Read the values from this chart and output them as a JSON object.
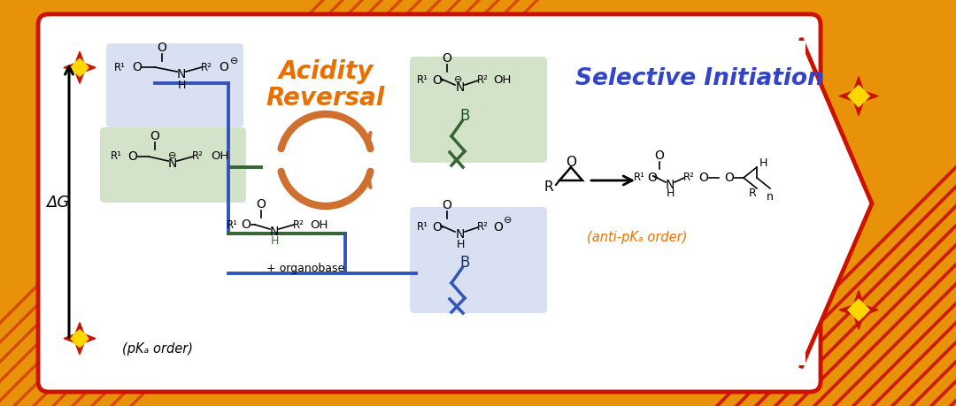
{
  "bg_color": "#E8920A",
  "panel_facecolor": "#FFFFFF",
  "border_color": "#CC1100",
  "title_acidity_color": "#E87000",
  "title_selective_color": "#3344CC",
  "antipka_color": "#E87000",
  "star_outer": "#CC1100",
  "star_inner": "#FFD700",
  "blue_hl": "#B8C8E8",
  "green_hl": "#B0CCA0",
  "blue_line": "#3355BB",
  "green_line": "#336633",
  "stripe_color": "#CC1100",
  "arrow_cycle_color": "#D07030",
  "black": "#111111",
  "label_dG": "ΔG",
  "label_pka": "(pKₐ order)",
  "label_antipka": "(anti-pKₐ order)",
  "label_organobase": "+ organobase"
}
